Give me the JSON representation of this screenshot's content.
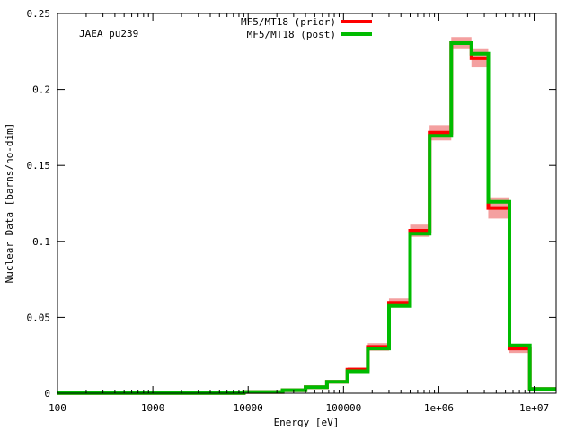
{
  "chart_data": {
    "type": "line",
    "step": true,
    "title": "",
    "annotation": "JAEA pu239",
    "xlabel": "Energy [eV]",
    "ylabel": "Nuclear Data [barns/no-dim]",
    "xscale": "log",
    "xlim": [
      100,
      17000000
    ],
    "ylim": [
      0,
      0.25
    ],
    "x_ticks": [
      100,
      1000,
      10000,
      100000,
      1000000,
      10000000
    ],
    "x_tick_labels": [
      "100",
      "1000",
      "10000",
      "100000",
      "1e+06",
      "1e+07"
    ],
    "y_ticks": [
      0,
      0.05,
      0.1,
      0.15,
      0.2,
      0.25
    ],
    "y_tick_labels": [
      "0",
      "0.05",
      "0.1",
      "0.15",
      "0.2",
      "0.25"
    ],
    "grid": false,
    "legend_position": "top-center",
    "bin_edges": [
      100,
      9000,
      23000,
      40000,
      67000,
      110000,
      180000,
      300000,
      500000,
      800000,
      1350000,
      2200000,
      3300000,
      5500000,
      9000000,
      17000000
    ],
    "series": [
      {
        "name": "MF5/MT18 (prior)",
        "color": "#ff0000",
        "band_color": "#f4a0a0",
        "values": [
          0.0002,
          0.0008,
          0.002,
          0.004,
          0.0075,
          0.0155,
          0.0305,
          0.0595,
          0.107,
          0.1715,
          0.2305,
          0.2205,
          0.122,
          0.0295,
          0.0028
        ],
        "uncertainty": [
          0.0001,
          0.0002,
          0.0005,
          0.0008,
          0.001,
          0.0015,
          0.0025,
          0.003,
          0.004,
          0.005,
          0.004,
          0.006,
          0.007,
          0.003,
          0.0005
        ]
      },
      {
        "name": "MF5/MT18 (post)",
        "color": "#00bb00",
        "values": [
          0.0002,
          0.0008,
          0.002,
          0.004,
          0.0075,
          0.0145,
          0.0295,
          0.0575,
          0.105,
          0.1695,
          0.2305,
          0.2235,
          0.126,
          0.0315,
          0.0028
        ]
      }
    ]
  }
}
